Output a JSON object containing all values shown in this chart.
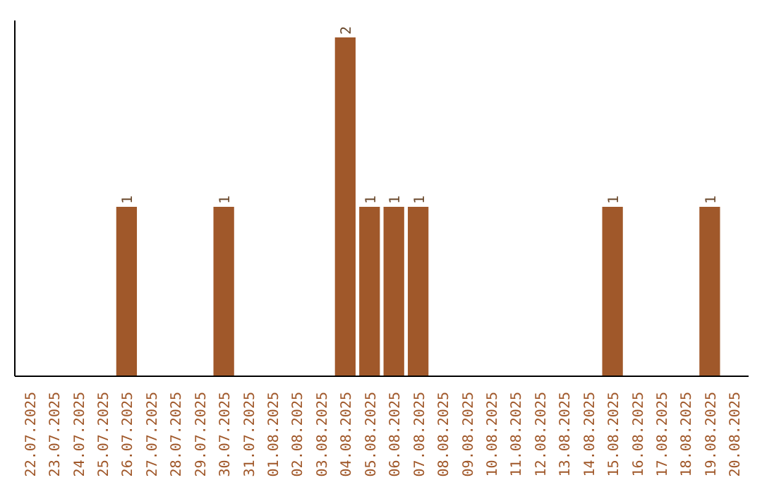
{
  "chart_data": {
    "type": "bar",
    "categories": [
      "22.07.2025",
      "23.07.2025",
      "24.07.2025",
      "25.07.2025",
      "26.07.2025",
      "27.07.2025",
      "28.07.2025",
      "29.07.2025",
      "30.07.2025",
      "31.07.2025",
      "01.08.2025",
      "02.08.2025",
      "03.08.2025",
      "04.08.2025",
      "05.08.2025",
      "06.08.2025",
      "07.08.2025",
      "08.08.2025",
      "09.08.2025",
      "10.08.2025",
      "11.08.2025",
      "12.08.2025",
      "13.08.2025",
      "14.08.2025",
      "15.08.2025",
      "16.08.2025",
      "17.08.2025",
      "18.08.2025",
      "19.08.2025",
      "20.08.2025"
    ],
    "values": [
      0,
      0,
      0,
      0,
      1,
      0,
      0,
      0,
      1,
      0,
      0,
      0,
      0,
      2,
      1,
      1,
      1,
      0,
      0,
      0,
      0,
      0,
      0,
      0,
      1,
      0,
      0,
      0,
      1,
      0
    ],
    "value_labels": [
      null,
      null,
      null,
      null,
      "1",
      null,
      null,
      null,
      "1",
      null,
      null,
      null,
      null,
      "2",
      "1",
      "1",
      "1",
      null,
      null,
      null,
      null,
      null,
      null,
      null,
      "1",
      null,
      null,
      null,
      "1",
      null
    ],
    "color": "#a0582a",
    "ylim": [
      0,
      2.1
    ],
    "tick_labels": "x",
    "grid": false
  }
}
